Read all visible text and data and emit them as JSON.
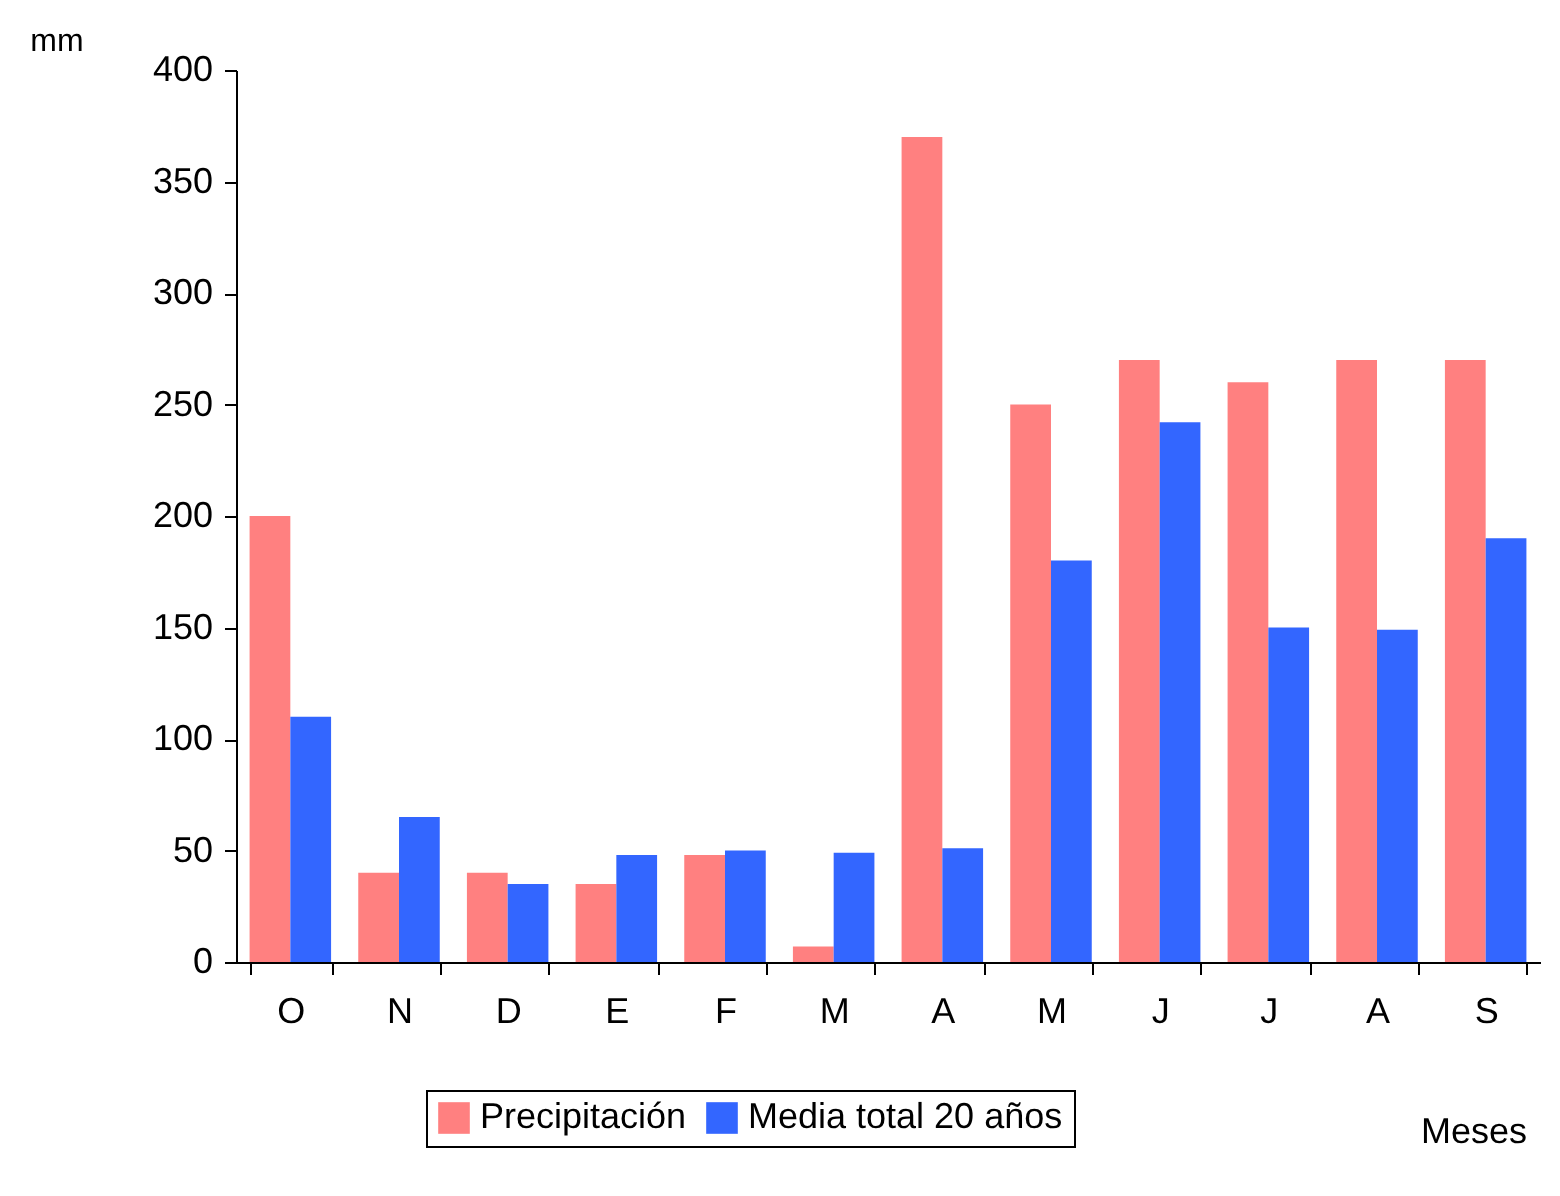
{
  "chart_data": {
    "type": "bar",
    "xlabel": "Meses",
    "ylabel": "mm",
    "categories": [
      "O",
      "N",
      "D",
      "E",
      "F",
      "M",
      "A",
      "M",
      "J",
      "J",
      "A",
      "S"
    ],
    "series": [
      {
        "name": "Precipitación",
        "color": "#ff8080",
        "values": [
          200,
          40,
          40,
          35,
          48,
          7,
          370,
          250,
          270,
          260,
          270,
          270
        ]
      },
      {
        "name": "Media total 20 años",
        "color": "#3366ff",
        "values": [
          110,
          65,
          35,
          48,
          50,
          49,
          51,
          180,
          242,
          150,
          149,
          190
        ]
      }
    ],
    "ylim": [
      0,
      400
    ],
    "yticks": [
      0,
      50,
      100,
      150,
      200,
      250,
      300,
      350,
      400
    ],
    "grid": false,
    "legend": "bottom"
  }
}
